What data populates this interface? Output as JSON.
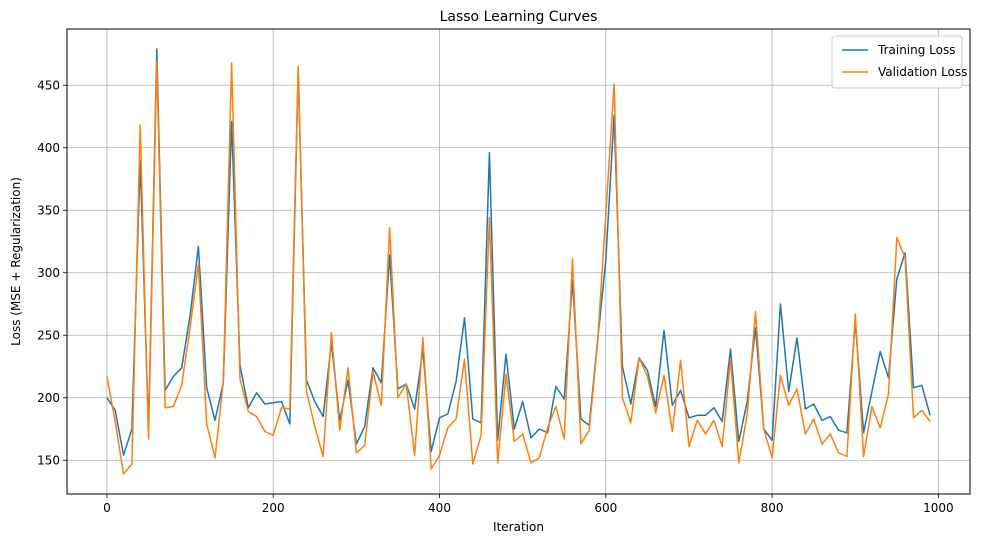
{
  "chart_data": {
    "type": "line",
    "title": "Lasso Learning Curves",
    "xlabel": "Iteration",
    "ylabel": "Loss (MSE + Regularization)",
    "xlim": [
      -48,
      1038
    ],
    "ylim": [
      123,
      495
    ],
    "xticks": [
      0,
      200,
      400,
      600,
      800,
      1000
    ],
    "yticks": [
      150,
      200,
      250,
      300,
      350,
      400,
      450
    ],
    "grid": true,
    "legend_position": "top-right",
    "x": [
      0,
      10,
      20,
      30,
      40,
      50,
      60,
      70,
      80,
      90,
      100,
      110,
      120,
      130,
      140,
      150,
      160,
      170,
      180,
      190,
      200,
      210,
      220,
      230,
      240,
      250,
      260,
      270,
      280,
      290,
      300,
      310,
      320,
      330,
      340,
      350,
      360,
      370,
      380,
      390,
      400,
      410,
      420,
      430,
      440,
      450,
      460,
      470,
      480,
      490,
      500,
      510,
      520,
      530,
      540,
      550,
      560,
      570,
      580,
      590,
      600,
      610,
      620,
      630,
      640,
      650,
      660,
      670,
      680,
      690,
      700,
      710,
      720,
      730,
      740,
      750,
      760,
      770,
      780,
      790,
      800,
      810,
      820,
      830,
      840,
      850,
      860,
      870,
      880,
      890,
      900,
      910,
      920,
      930,
      940,
      950,
      960,
      970,
      980,
      990
    ],
    "series": [
      {
        "name": "Training Loss",
        "color": "#1f77b4",
        "values": [
          200,
          190,
          154,
          175,
          390,
          175,
          479,
          206,
          217,
          224,
          266,
          321,
          208,
          182,
          212,
          421,
          226,
          192,
          204,
          195,
          196,
          197,
          179,
          462,
          214,
          197,
          185,
          244,
          182,
          214,
          163,
          177,
          224,
          212,
          314,
          207,
          211,
          191,
          238,
          157,
          184,
          187,
          213,
          264,
          183,
          180,
          396,
          166,
          235,
          175,
          197,
          168,
          175,
          172,
          209,
          199,
          294,
          183,
          178,
          245,
          310,
          426,
          225,
          195,
          232,
          222,
          193,
          254,
          194,
          206,
          184,
          186,
          186,
          192,
          181,
          239,
          165,
          197,
          256,
          175,
          166,
          275,
          205,
          248,
          191,
          195,
          182,
          185,
          174,
          172,
          261,
          172,
          205,
          237,
          216,
          295,
          316,
          208,
          210,
          186
        ]
      },
      {
        "name": "Validation Loss",
        "color": "#ff7f0e",
        "values": [
          217,
          181,
          139,
          147,
          418,
          167,
          469,
          192,
          193,
          210,
          256,
          307,
          179,
          152,
          213,
          468,
          215,
          189,
          185,
          173,
          170,
          192,
          191,
          465,
          205,
          177,
          153,
          252,
          174,
          224,
          156,
          162,
          221,
          194,
          336,
          200,
          211,
          154,
          248,
          143,
          154,
          176,
          183,
          231,
          147,
          170,
          344,
          148,
          219,
          165,
          171,
          148,
          152,
          176,
          193,
          167,
          311,
          163,
          174,
          243,
          347,
          451,
          200,
          180,
          232,
          217,
          188,
          218,
          173,
          230,
          161,
          182,
          171,
          182,
          161,
          231,
          148,
          187,
          269,
          175,
          152,
          218,
          194,
          207,
          171,
          183,
          163,
          171,
          156,
          153,
          267,
          153,
          193,
          176,
          203,
          328,
          312,
          184,
          190,
          181
        ]
      }
    ]
  }
}
